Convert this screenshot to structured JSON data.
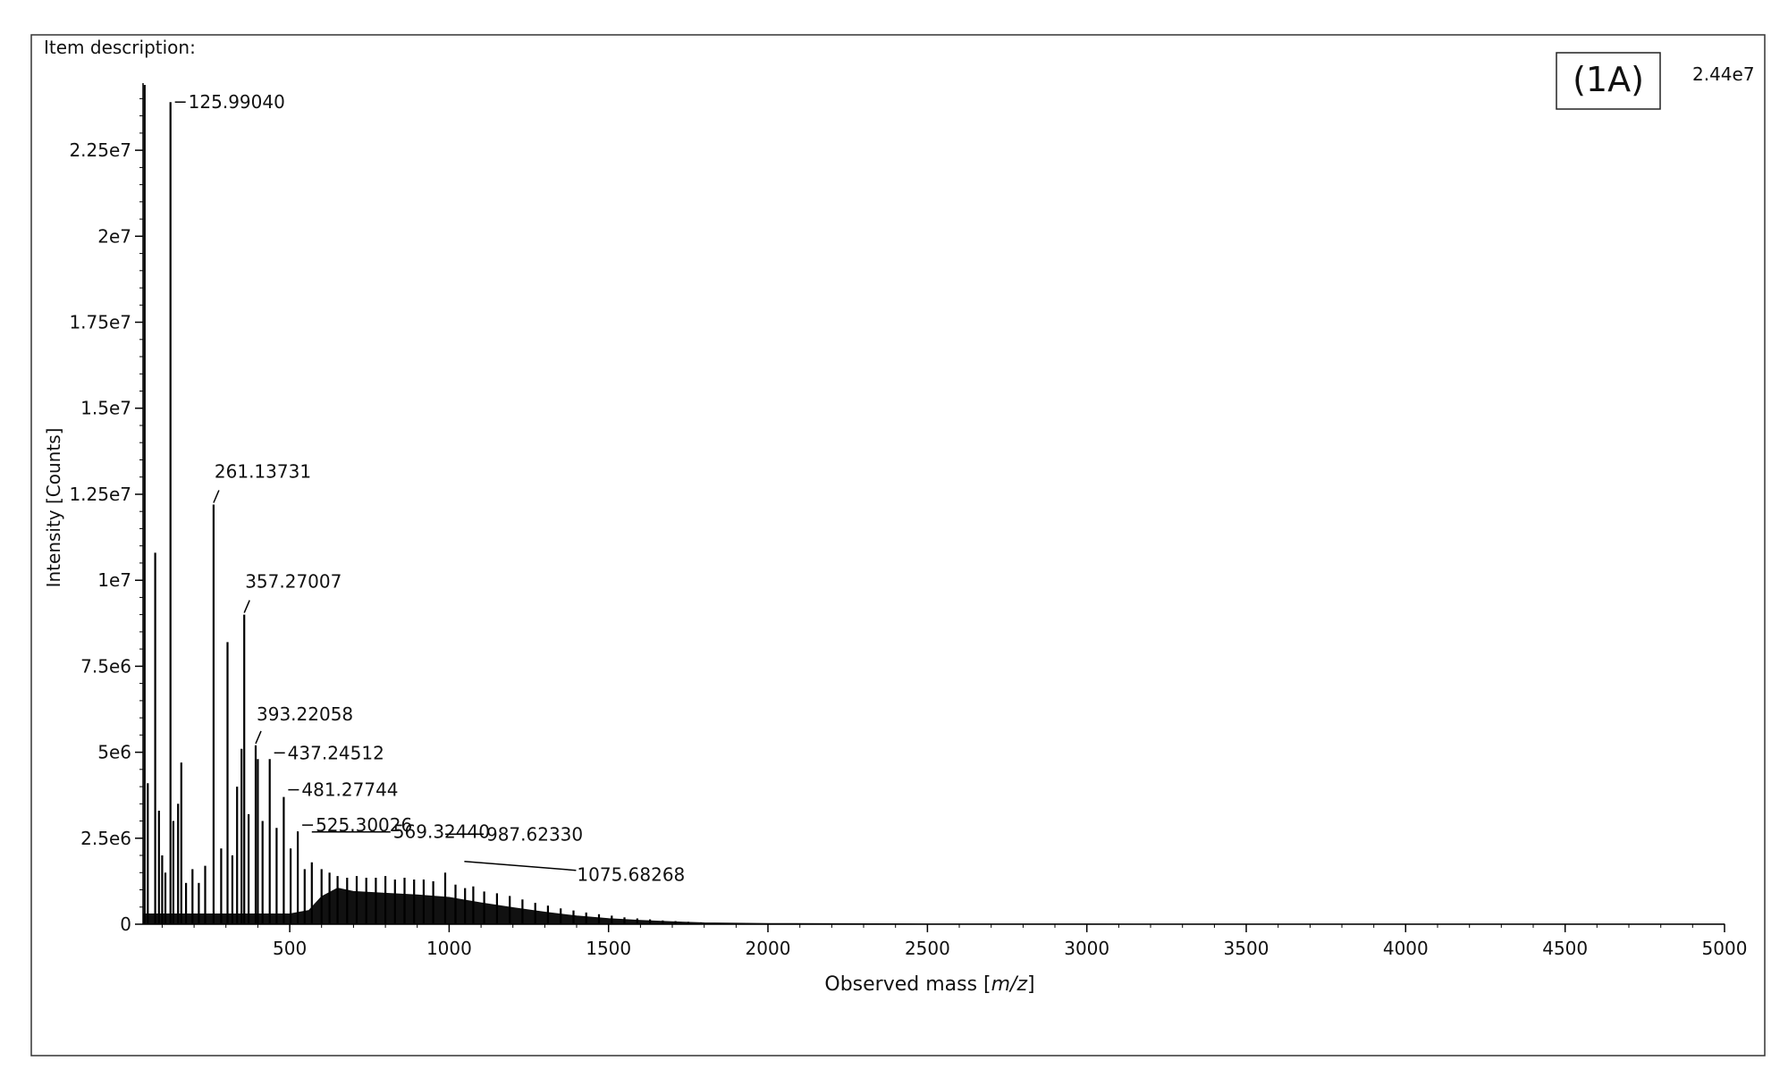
{
  "header": {
    "item_description": "Item description:"
  },
  "panel_label": "(1A)",
  "max_intensity_label": "2.44e7",
  "chart_data": {
    "type": "line",
    "title": "",
    "xlabel_prefix": "Observed mass [",
    "xlabel_italic": "m/z",
    "xlabel_suffix": "]",
    "ylabel": "Intensity [Counts]",
    "xlim": [
      40,
      5000
    ],
    "ylim": [
      0,
      24400000
    ],
    "x_ticks": [
      500,
      1000,
      1500,
      2000,
      2500,
      3000,
      3500,
      4000,
      4500,
      5000
    ],
    "x_tick_labels": [
      "500",
      "1000",
      "1500",
      "2000",
      "2500",
      "3000",
      "3500",
      "4000",
      "4500",
      "5000"
    ],
    "y_ticks": [
      0,
      2500000,
      5000000,
      7500000,
      10000000,
      12500000,
      15000000,
      17500000,
      20000000,
      22500000
    ],
    "y_tick_labels": [
      "0",
      "2.5e6",
      "5e6",
      "7.5e6",
      "1e7",
      "1.25e7",
      "1.5e7",
      "1.75e7",
      "2e7",
      "2.25e7"
    ],
    "grid": false,
    "legend": "none",
    "envelope": [
      [
        40,
        300000
      ],
      [
        500,
        300000
      ],
      [
        560,
        400000
      ],
      [
        600,
        800000
      ],
      [
        650,
        1050000
      ],
      [
        700,
        950000
      ],
      [
        800,
        900000
      ],
      [
        900,
        850000
      ],
      [
        1000,
        780000
      ],
      [
        1100,
        620000
      ],
      [
        1200,
        480000
      ],
      [
        1300,
        350000
      ],
      [
        1400,
        240000
      ],
      [
        1500,
        160000
      ],
      [
        1600,
        110000
      ],
      [
        1700,
        70000
      ],
      [
        1800,
        40000
      ],
      [
        2000,
        20000
      ],
      [
        2500,
        8000
      ],
      [
        3000,
        5000
      ],
      [
        4000,
        3000
      ],
      [
        5000,
        2000
      ]
    ],
    "peaks": [
      [
        45,
        24400000
      ],
      [
        55,
        4100000
      ],
      [
        78,
        10800000
      ],
      [
        90,
        3300000
      ],
      [
        100,
        2000000
      ],
      [
        110,
        1500000
      ],
      [
        125.99,
        23900000
      ],
      [
        135,
        3000000
      ],
      [
        150,
        3500000
      ],
      [
        160,
        4700000
      ],
      [
        175,
        1200000
      ],
      [
        195,
        1600000
      ],
      [
        215,
        1200000
      ],
      [
        235,
        1700000
      ],
      [
        261.14,
        12200000
      ],
      [
        285,
        2200000
      ],
      [
        305,
        8200000
      ],
      [
        320,
        2000000
      ],
      [
        335,
        4000000
      ],
      [
        349,
        5100000
      ],
      [
        357.27,
        9000000
      ],
      [
        371,
        3200000
      ],
      [
        393.22,
        5200000
      ],
      [
        400,
        4800000
      ],
      [
        415,
        3000000
      ],
      [
        437.25,
        4800000
      ],
      [
        459,
        2800000
      ],
      [
        481.28,
        3700000
      ],
      [
        503,
        2200000
      ],
      [
        525.3,
        2700000
      ],
      [
        547,
        1600000
      ],
      [
        569.32,
        1800000
      ],
      [
        600,
        1600000
      ],
      [
        625,
        1500000
      ],
      [
        650,
        1400000
      ],
      [
        680,
        1350000
      ],
      [
        710,
        1400000
      ],
      [
        740,
        1350000
      ],
      [
        770,
        1350000
      ],
      [
        800,
        1400000
      ],
      [
        830,
        1300000
      ],
      [
        860,
        1350000
      ],
      [
        890,
        1300000
      ],
      [
        920,
        1300000
      ],
      [
        950,
        1250000
      ],
      [
        987.62,
        1500000
      ],
      [
        1020,
        1150000
      ],
      [
        1050,
        1050000
      ],
      [
        1075.68,
        1100000
      ],
      [
        1110,
        950000
      ],
      [
        1150,
        900000
      ],
      [
        1190,
        820000
      ],
      [
        1230,
        720000
      ],
      [
        1270,
        620000
      ],
      [
        1310,
        540000
      ],
      [
        1350,
        460000
      ],
      [
        1390,
        400000
      ],
      [
        1430,
        340000
      ],
      [
        1470,
        290000
      ],
      [
        1510,
        250000
      ],
      [
        1550,
        200000
      ],
      [
        1590,
        170000
      ],
      [
        1630,
        140000
      ],
      [
        1670,
        110000
      ],
      [
        1710,
        90000
      ],
      [
        1750,
        70000
      ],
      [
        1790,
        55000
      ]
    ],
    "annotations": [
      {
        "label": "125.99040",
        "x": 125.99,
        "y": 23900000
      },
      {
        "label": "261.13731",
        "x": 261.14,
        "y": 12200000
      },
      {
        "label": "357.27007",
        "x": 357.27,
        "y": 9000000
      },
      {
        "label": "393.22058",
        "x": 393.22,
        "y": 5200000
      },
      {
        "label": "437.24512",
        "x": 437.25,
        "y": 4800000
      },
      {
        "label": "481.27744",
        "x": 481.28,
        "y": 3700000
      },
      {
        "label": "525.30026",
        "x": 525.3,
        "y": 2700000
      },
      {
        "label": "569.32440",
        "x": 569.32,
        "y": 1800000
      },
      {
        "label": "987.62330",
        "x": 987.62,
        "y": 1500000
      },
      {
        "label": "1075.68268",
        "x": 1075.68,
        "y": 1100000
      }
    ]
  }
}
